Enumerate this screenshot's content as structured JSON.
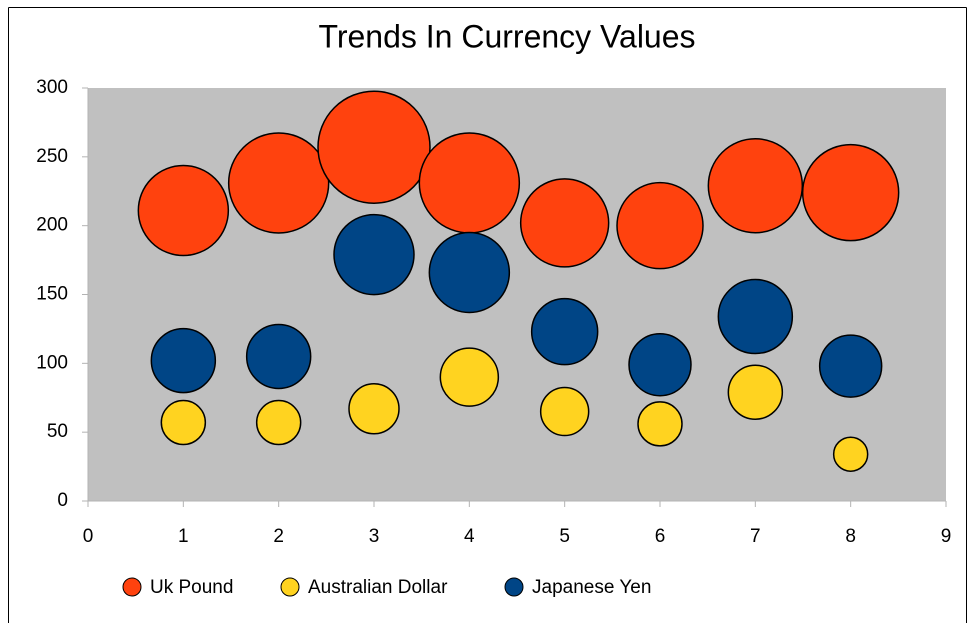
{
  "chart_data": {
    "type": "bubble",
    "title": "Trends In Currency Values",
    "x": [
      1,
      2,
      3,
      4,
      5,
      6,
      7,
      8
    ],
    "series": [
      {
        "name": "Uk Pound",
        "color": "#ff420e",
        "values": [
          211,
          231,
          257,
          231,
          202,
          200,
          229,
          224
        ],
        "sizes": [
          2025,
          2500,
          3136,
          2500,
          1936,
          1849,
          2209,
          2304
        ]
      },
      {
        "name": "Australian Dollar",
        "color": "#ffd320",
        "values": [
          57,
          57,
          67,
          90,
          65,
          56,
          79,
          34
        ],
        "sizes": [
          484,
          484,
          625,
          841,
          576,
          484,
          729,
          289
        ]
      },
      {
        "name": "Japanese Yen",
        "color": "#004586",
        "values": [
          102,
          105,
          179,
          166,
          123,
          99,
          134,
          98
        ],
        "sizes": [
          1024,
          1024,
          1600,
          1600,
          1089,
          961,
          1369,
          961
        ]
      }
    ],
    "xlim": [
      0,
      9
    ],
    "xticks": [
      0,
      1,
      2,
      3,
      4,
      5,
      6,
      7,
      8,
      9
    ],
    "ylim": [
      0,
      300
    ],
    "yticks": [
      0,
      50,
      100,
      150,
      200,
      250,
      300
    ],
    "legend": "bottom",
    "plot_background": "#c0c0c0"
  }
}
